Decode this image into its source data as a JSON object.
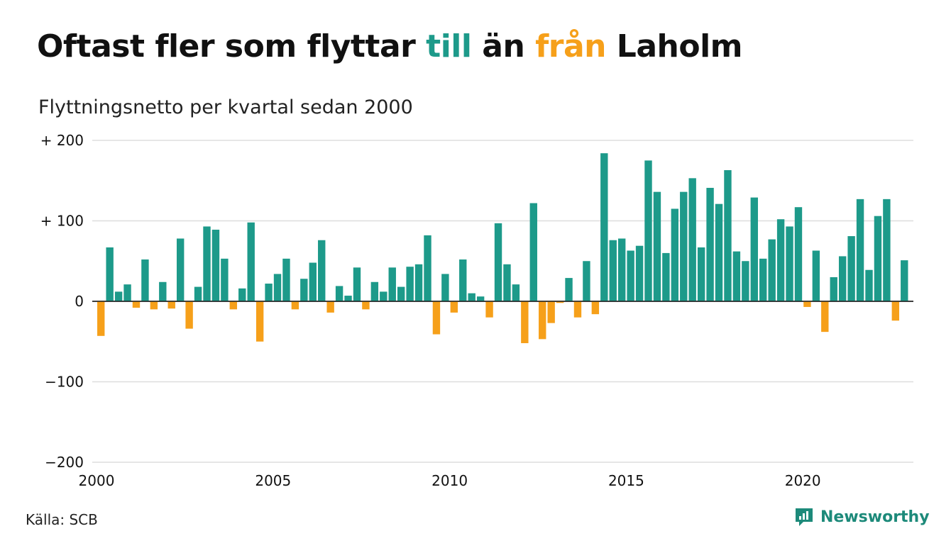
{
  "title": {
    "part1": "Oftast fler som flyttar ",
    "part2": "till",
    "part3": " än ",
    "part4": "från",
    "part5": " Laholm"
  },
  "subtitle": "Flyttningsnetto per kvartal sedan 2000",
  "source": "Källa: SCB",
  "logo_text": "Newsworthy",
  "colors": {
    "positive": "#1d9a8a",
    "negative": "#f6a01a",
    "text": "#111111",
    "grid": "#dddddd",
    "logo": "#1d8a7a"
  },
  "chart_data": {
    "type": "bar",
    "x_start": 2000,
    "periods_per_year": 4,
    "ylim": [
      -200,
      200
    ],
    "y_ticks": [
      200,
      100,
      0,
      -100,
      -200
    ],
    "y_tick_labels": [
      "+ 200",
      "+ 100",
      "0",
      "−100",
      "−200"
    ],
    "x_ticks": [
      2000,
      2005,
      2010,
      2015,
      2020
    ],
    "x_tick_labels": [
      "2000",
      "2005",
      "2010",
      "2015",
      "2020"
    ],
    "grid": true,
    "values": [
      -43,
      67,
      12,
      21,
      -8,
      52,
      -10,
      24,
      -9,
      78,
      -34,
      18,
      93,
      89,
      53,
      -10,
      16,
      98,
      -50,
      22,
      34,
      53,
      -10,
      28,
      48,
      76,
      -14,
      19,
      7,
      42,
      -10,
      24,
      12,
      42,
      18,
      43,
      46,
      82,
      -41,
      34,
      -14,
      52,
      10,
      6,
      -20,
      97,
      46,
      21,
      -52,
      122,
      -47,
      -27,
      -2,
      29,
      -20,
      50,
      -16,
      184,
      76,
      78,
      63,
      69,
      175,
      136,
      60,
      115,
      136,
      153,
      67,
      141,
      121,
      163,
      62,
      50,
      129,
      53,
      77,
      102,
      93,
      117,
      -7,
      63,
      -38,
      30,
      56,
      81,
      127,
      39,
      106,
      127,
      -24,
      51
    ]
  }
}
